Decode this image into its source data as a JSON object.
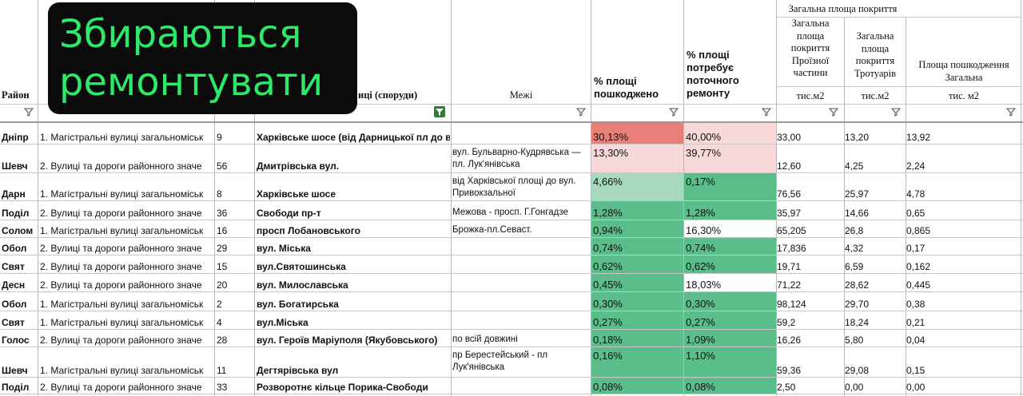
{
  "overlay": {
    "line1": "Збираються",
    "line2": "ремонтувати"
  },
  "headers": {
    "district": "Район",
    "street_partial": "иці (споруди)",
    "limits": "Межі",
    "pct_damaged": [
      "% площі",
      "пошкоджено"
    ],
    "pct_repair": [
      "% площі",
      "потребує",
      "поточного",
      "ремонту"
    ],
    "group_title": "Загальна площа покриття",
    "col_carriage": [
      "Загальна",
      "площа",
      "покриття",
      "Проїзної",
      "частини"
    ],
    "col_sidewalk": [
      "Загальна",
      "площа",
      "покриття",
      "Тротуарів"
    ],
    "col_damage": [
      "Площа пошкодження",
      "Загальна"
    ],
    "unit_a": "тис.м2",
    "unit_b": "тис.м2",
    "unit_c": "тис. м2"
  },
  "colors": {
    "red": "#e88079",
    "pink": "#f7d9d9",
    "light_green": "#a6d9bd",
    "green": "#5bbd8a",
    "overlay_text": "#2ee86a"
  },
  "rows": [
    {
      "district": "Дніпр",
      "category": "1. Магістральні вулиці загальноміськ",
      "num": "9",
      "name": "Харківське шосе (від Дарницької пл до вул Привокзальної)",
      "limits": "",
      "pct_damaged": "30,13%",
      "pct_repair": "40,00%",
      "area_carriage": "33,00",
      "area_sidewalk": "13,20",
      "area_damage": "13,92"
    },
    {
      "district": "Шевч",
      "category": "2. Вулиці та дороги районного значе",
      "num": "56",
      "name": "Дмитрівська вул.",
      "limits": "вул. Бульварно-Кудрявська — пл. Лук'янівська",
      "pct_damaged": "13,30%",
      "pct_repair": "39,77%",
      "area_carriage": "12,60",
      "area_sidewalk": "4,25",
      "area_damage": "2,24"
    },
    {
      "district": "Дарн",
      "category": "1. Магістральні вулиці загальноміськ",
      "num": "8",
      "name": "Харківське шосе",
      "limits": "від Харківської площі до вул. Привокзальної",
      "pct_damaged": "4,66%",
      "pct_repair": "0,17%",
      "area_carriage": "76,56",
      "area_sidewalk": "25,97",
      "area_damage": "4,78"
    },
    {
      "district": "Поділ",
      "category": "2. Вулиці та дороги районного значе",
      "num": "36",
      "name": "Свободи пр-т",
      "limits": "Межова - просп. Г.Гонгадзе",
      "pct_damaged": "1,28%",
      "pct_repair": "1,28%",
      "area_carriage": "35,97",
      "area_sidewalk": "14,66",
      "area_damage": "0,65"
    },
    {
      "district": "Солом",
      "category": "1. Магістральні вулиці загальноміськ",
      "num": "16",
      "name": "просп Лобановського",
      "limits": "Брожка-пл.Севаст.",
      "pct_damaged": "0,94%",
      "pct_repair": "16,30%",
      "area_carriage": "65,205",
      "area_sidewalk": "26,8",
      "area_damage": "0,865"
    },
    {
      "district": "Обол",
      "category": "2. Вулиці та дороги районного значе",
      "num": "29",
      "name": "вул. Міська",
      "limits": "",
      "pct_damaged": "0,74%",
      "pct_repair": "0,74%",
      "area_carriage": "17,836",
      "area_sidewalk": "4,32",
      "area_damage": "0,17"
    },
    {
      "district": "Свят",
      "category": "2. Вулиці та дороги районного значе",
      "num": "15",
      "name": "вул.Святошинська",
      "limits": "",
      "pct_damaged": "0,62%",
      "pct_repair": "0,62%",
      "area_carriage": "19,71",
      "area_sidewalk": "6,59",
      "area_damage": "0,162"
    },
    {
      "district": "Десн",
      "category": "2. Вулиці та дороги районного значе",
      "num": "20",
      "name": "вул. Милославська",
      "limits": "",
      "pct_damaged": "0,45%",
      "pct_repair": "18,03%",
      "area_carriage": "71,22",
      "area_sidewalk": "28,62",
      "area_damage": "0,445"
    },
    {
      "district": "Обол",
      "category": "1. Магістральні вулиці загальноміськ",
      "num": "2",
      "name": "вул. Богатирська",
      "limits": "",
      "pct_damaged": "0,30%",
      "pct_repair": "0,30%",
      "area_carriage": "98,124",
      "area_sidewalk": "29,70",
      "area_damage": "0,38"
    },
    {
      "district": "Свят",
      "category": "1. Магістральні вулиці загальноміськ",
      "num": "4",
      "name": "вул.Міська",
      "limits": "",
      "pct_damaged": "0,27%",
      "pct_repair": "0,27%",
      "area_carriage": "59,2",
      "area_sidewalk": "18,24",
      "area_damage": "0,21"
    },
    {
      "district": "Голос",
      "category": "2. Вулиці та дороги районного значе",
      "num": "28",
      "name": "вул. Героїв Маріуполя (Якубовського)",
      "limits": "по всій довжині",
      "pct_damaged": "0,18%",
      "pct_repair": "1,09%",
      "area_carriage": "16,26",
      "area_sidewalk": "5,80",
      "area_damage": "0,04"
    },
    {
      "district": "Шевч",
      "category": "1. Магістральні вулиці загальноміськ",
      "num": "11",
      "name": "Дегтярівська вул",
      "limits": "пр Берестейський - пл Лук'янівська",
      "pct_damaged": "0,16%",
      "pct_repair": "1,10%",
      "area_carriage": "59,36",
      "area_sidewalk": "29,08",
      "area_damage": "0,15"
    },
    {
      "district": "Поділ",
      "category": "2. Вулиці та дороги районного значе",
      "num": "33",
      "name": "Розворотнє кільце Порика-Свободи",
      "limits": "",
      "pct_damaged": "0,08%",
      "pct_repair": "0,08%",
      "area_carriage": "2,50",
      "area_sidewalk": "0,00",
      "area_damage": "0,00"
    }
  ]
}
